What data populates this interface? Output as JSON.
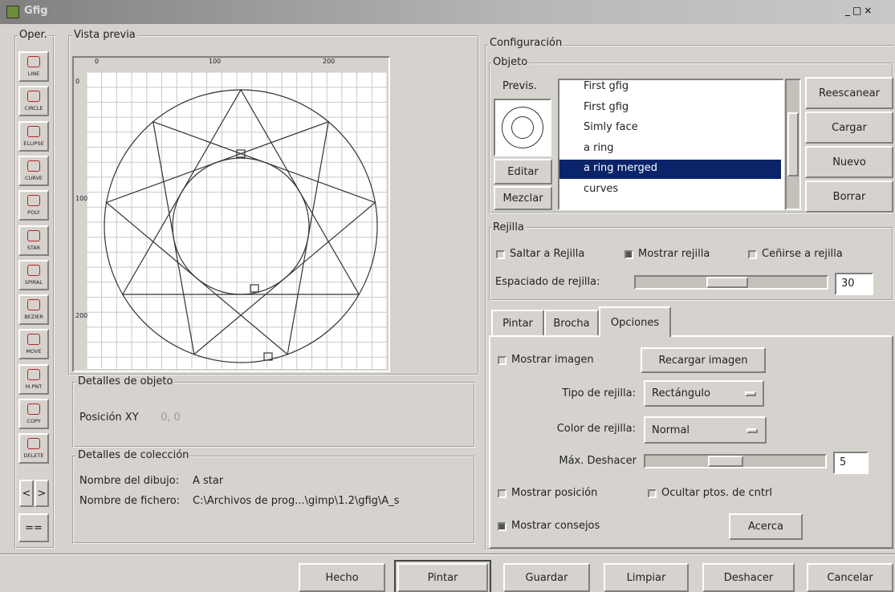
{
  "window": {
    "title": "Gfig"
  },
  "tools": {
    "label": "Oper.",
    "buttons": [
      "LINE",
      "CIRCLE",
      "ELLIPSE",
      "CURVE",
      "POLY",
      "STAR",
      "SPIRAL",
      "BEZIER",
      "MOVE",
      "M.PNT",
      "COPY",
      "DELETE"
    ],
    "nav": [
      "<",
      ">"
    ],
    "extra": "=="
  },
  "preview": {
    "title": "Vista previa",
    "ruler_top": [
      0,
      100,
      200
    ],
    "ruler_left": [
      0,
      100,
      200
    ]
  },
  "object_details": {
    "title": "Detalles de objeto",
    "position_label": "Posición XY",
    "position_value": "0, 0"
  },
  "collection_details": {
    "title": "Detalles de colección",
    "drawing_label": "Nombre del dibujo:",
    "drawing_value": "A star",
    "file_label": "Nombre de fichero:",
    "file_value": "C:\\Archivos de prog...\\gimp\\1.2\\gfig\\A_s"
  },
  "config": {
    "title": "Configuración",
    "object": {
      "title": "Objeto",
      "preview_label": "Previs.",
      "edit": "Editar",
      "merge": "Mezclar",
      "list": [
        "First gfig",
        "First gfig",
        "Simly face",
        "a ring",
        "a ring merged",
        "curves"
      ],
      "selected": 4,
      "buttons": [
        "Reescanear",
        "Cargar",
        "Nuevo",
        "Borrar"
      ]
    },
    "grid": {
      "title": "Rejilla",
      "checkboxes": [
        {
          "label": "Saltar a Rejilla",
          "checked": false
        },
        {
          "label": "Mostrar rejilla",
          "checked": true
        },
        {
          "label": "Ceñirse a rejilla",
          "checked": false
        }
      ],
      "spacing_label": "Espaciado de rejilla:",
      "spacing": 30
    },
    "tabs": {
      "items": [
        "Pintar",
        "Brocha",
        "Opciones"
      ],
      "active": 2
    },
    "options": {
      "show_image": {
        "label": "Mostrar imagen",
        "checked": false
      },
      "reload_image": "Recargar imagen",
      "grid_type_label": "Tipo de rejilla:",
      "grid_type": "Rectángulo",
      "grid_color_label": "Color de rejilla:",
      "grid_color": "Normal",
      "max_undo_label": "Máx. Deshacer",
      "max_undo": 5,
      "show_position": {
        "label": "Mostrar posición",
        "checked": false
      },
      "hide_control": {
        "label": "Ocultar ptos. de cntrl",
        "checked": false
      },
      "show_tips": {
        "label": "Mostrar consejos",
        "checked": true
      },
      "about": "Acerca"
    }
  },
  "footer": {
    "buttons": [
      "Hecho",
      "Pintar",
      "Guardar",
      "Limpiar",
      "Deshacer",
      "Cancelar"
    ],
    "default": 1
  }
}
